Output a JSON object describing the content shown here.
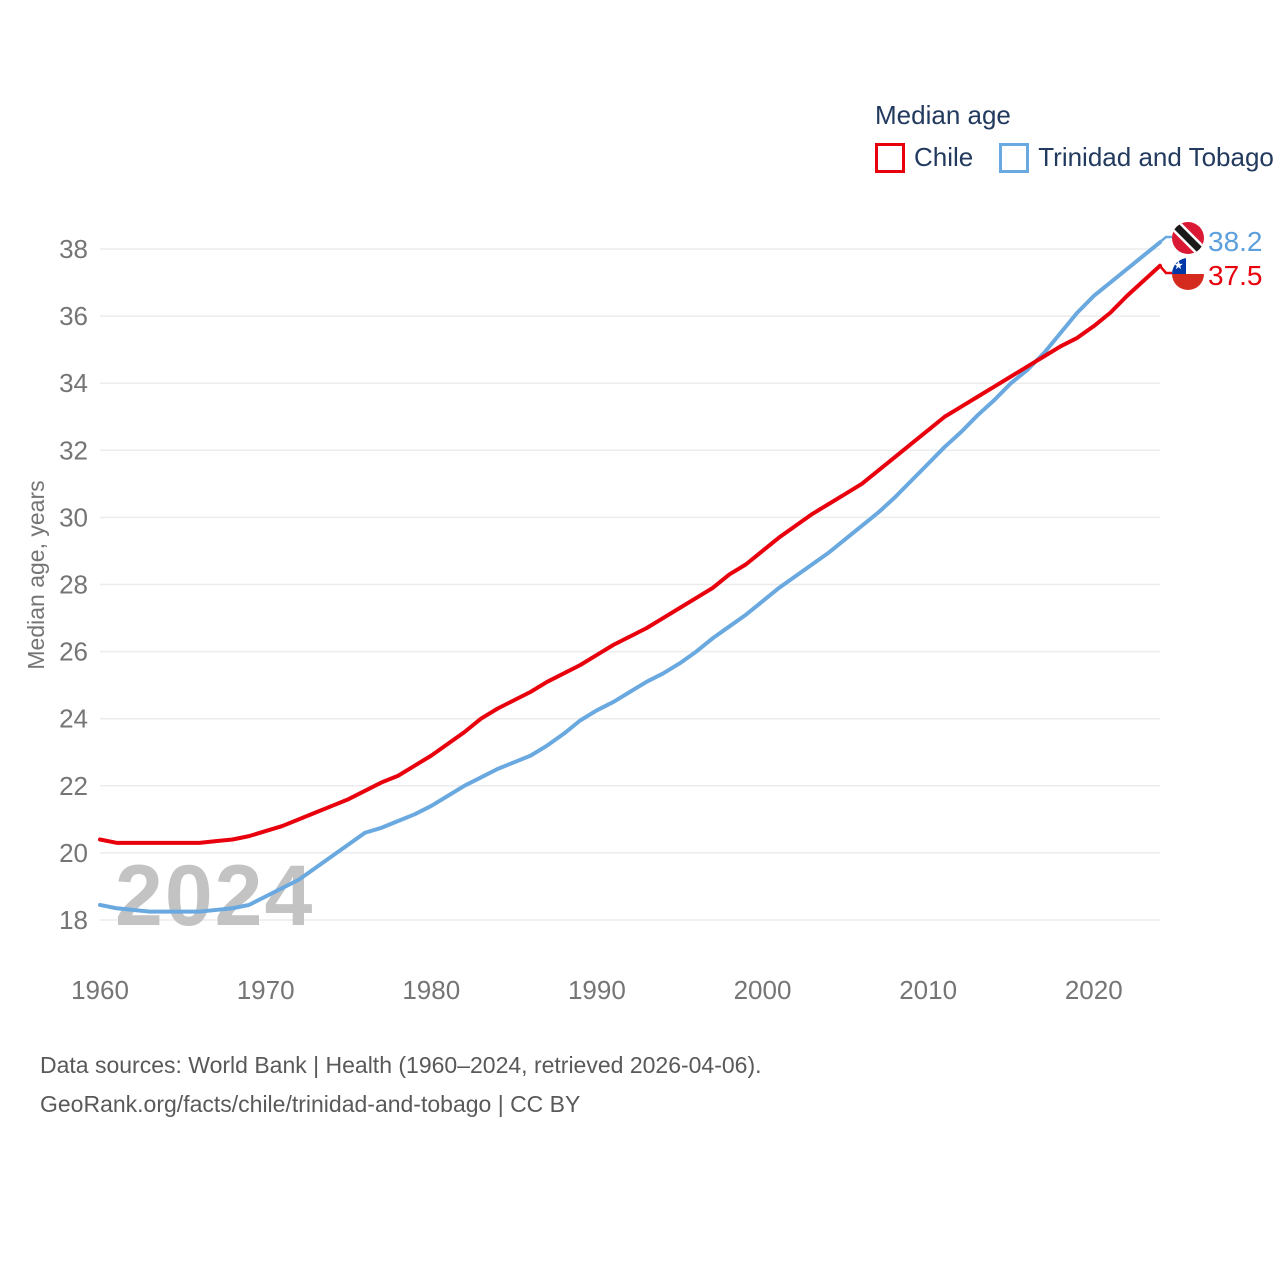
{
  "legend": {
    "title": "Median age",
    "items": [
      {
        "label": "Chile",
        "color": "#e8000d"
      },
      {
        "label": "Trinidad and Tobago",
        "color": "#6aa9e0"
      }
    ]
  },
  "watermark": "2024",
  "chart_data": {
    "type": "line",
    "title": "Median age",
    "ylabel": "Median age, years",
    "xlabel": "",
    "grid": true,
    "legend_position": "top-right",
    "xlim": [
      1960,
      2024
    ],
    "ylim": [
      18,
      38.5
    ],
    "yticks": [
      18,
      20,
      22,
      24,
      26,
      28,
      30,
      32,
      34,
      36,
      38
    ],
    "xticks": [
      1960,
      1970,
      1980,
      1990,
      2000,
      2010,
      2020
    ],
    "x": [
      1960,
      1961,
      1962,
      1963,
      1964,
      1965,
      1966,
      1967,
      1968,
      1969,
      1970,
      1971,
      1972,
      1973,
      1974,
      1975,
      1976,
      1977,
      1978,
      1979,
      1980,
      1981,
      1982,
      1983,
      1984,
      1985,
      1986,
      1987,
      1988,
      1989,
      1990,
      1991,
      1992,
      1993,
      1994,
      1995,
      1996,
      1997,
      1998,
      1999,
      2000,
      2001,
      2002,
      2003,
      2004,
      2005,
      2006,
      2007,
      2008,
      2009,
      2010,
      2011,
      2012,
      2013,
      2014,
      2015,
      2016,
      2017,
      2018,
      2019,
      2020,
      2021,
      2022,
      2023,
      2024
    ],
    "series": [
      {
        "name": "Chile",
        "color": "#e8000d",
        "end_value_label": "37.5",
        "flag": "chile-flag",
        "values": [
          20.4,
          20.3,
          20.3,
          20.3,
          20.3,
          20.3,
          20.3,
          20.35,
          20.4,
          20.5,
          20.65,
          20.8,
          21.0,
          21.2,
          21.4,
          21.6,
          21.85,
          22.1,
          22.3,
          22.6,
          22.9,
          23.25,
          23.6,
          24.0,
          24.3,
          24.55,
          24.8,
          25.1,
          25.35,
          25.6,
          25.9,
          26.2,
          26.45,
          26.7,
          27.0,
          27.3,
          27.6,
          27.9,
          28.3,
          28.6,
          29.0,
          29.4,
          29.75,
          30.1,
          30.4,
          30.7,
          31.0,
          31.4,
          31.8,
          32.2,
          32.6,
          33.0,
          33.3,
          33.6,
          33.9,
          34.2,
          34.5,
          34.8,
          35.1,
          35.35,
          35.7,
          36.1,
          36.6,
          37.05,
          37.5
        ]
      },
      {
        "name": "Trinidad and Tobago",
        "color": "#6aa9e0",
        "end_value_label": "38.2",
        "flag": "trinidad-and-tobago-flag",
        "values": [
          18.45,
          18.35,
          18.3,
          18.25,
          18.25,
          18.25,
          18.25,
          18.3,
          18.35,
          18.45,
          18.7,
          18.95,
          19.2,
          19.55,
          19.9,
          20.25,
          20.6,
          20.75,
          20.95,
          21.15,
          21.4,
          21.7,
          22.0,
          22.25,
          22.5,
          22.7,
          22.9,
          23.2,
          23.55,
          23.95,
          24.25,
          24.5,
          24.8,
          25.1,
          25.35,
          25.65,
          26.0,
          26.4,
          26.75,
          27.1,
          27.5,
          27.9,
          28.25,
          28.6,
          28.95,
          29.35,
          29.75,
          30.15,
          30.6,
          31.1,
          31.6,
          32.1,
          32.55,
          33.05,
          33.5,
          34.0,
          34.4,
          34.9,
          35.5,
          36.1,
          36.6,
          37.0,
          37.4,
          37.8,
          38.2
        ]
      }
    ]
  },
  "end_labels": {
    "trinidad": "38.2",
    "chile": "37.5"
  },
  "footer": {
    "line1": "Data sources: World Bank | Health (1960–2024, retrieved 2026-04-06).",
    "line2": "GeoRank.org/facts/chile/trinidad-and-tobago | CC BY"
  }
}
